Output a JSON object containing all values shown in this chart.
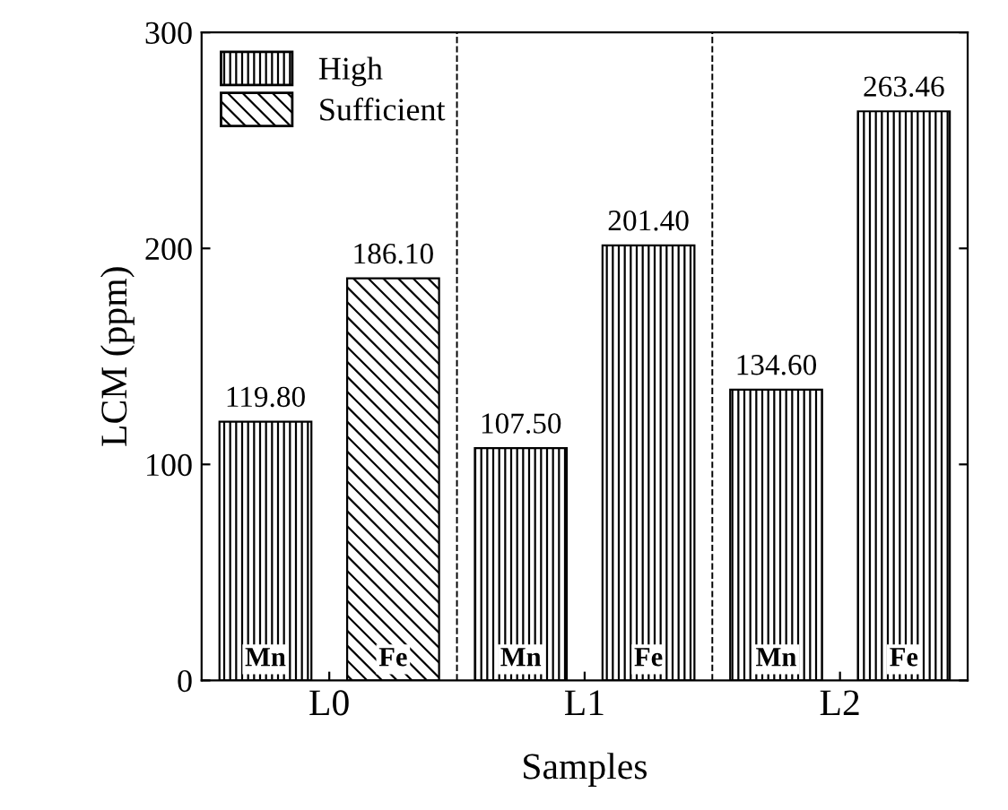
{
  "chart_data": {
    "type": "bar",
    "xlabel": "Samples",
    "ylabel": "LCM (ppm)",
    "categories": [
      "L0",
      "L1",
      "L2"
    ],
    "series": [
      {
        "name": "High",
        "color": "#000000",
        "values": [
          119.8,
          107.5,
          134.6
        ],
        "value_labels": [
          "119.80",
          "107.50",
          "134.60"
        ]
      },
      {
        "name": "Sufficient",
        "color": "#000000",
        "values": [
          186.1,
          null,
          null
        ],
        "value_labels": [
          "186.10",
          null,
          null
        ]
      },
      {
        "color": "#000000",
        "values": [
          null,
          201.4,
          263.46
        ],
        "value_labels": [
          null,
          "201.40",
          "263.46"
        ]
      }
    ],
    "annotations": [
      "Mn",
      "Fe",
      "Mn",
      "Fe",
      "Mn",
      "Fe"
    ],
    "ylim": [
      0,
      300
    ],
    "yticks": [
      0,
      100,
      200,
      300
    ],
    "grid": false,
    "legend": "top left"
  }
}
